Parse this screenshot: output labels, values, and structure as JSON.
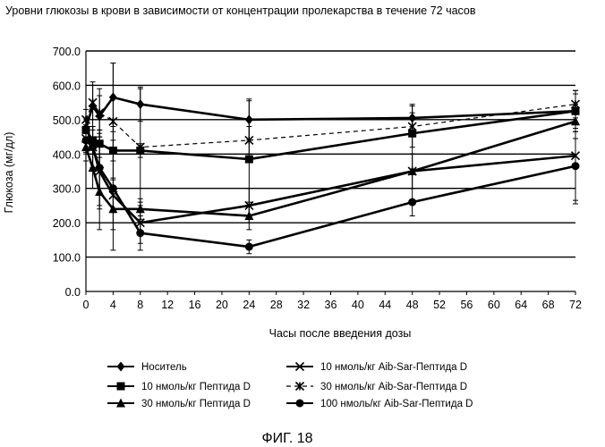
{
  "figure_label": "ФИГ. 18",
  "chart_data": {
    "type": "line",
    "title": "Уровни глюкозы в крови в зависимости от концентрации пролекарства в течение 72 часов",
    "xlabel": "Часы после введения дозы",
    "ylabel": "Глюкоза (мг/дл)",
    "xlim": [
      0,
      72
    ],
    "ylim": [
      0,
      700
    ],
    "xticks": [
      "0",
      "4",
      "8",
      "12",
      "16",
      "20",
      "24",
      "28",
      "32",
      "36",
      "40",
      "44",
      "48",
      "52",
      "56",
      "60",
      "64",
      "68",
      "72"
    ],
    "yticks": [
      "0.0",
      "100.0",
      "200.0",
      "300.0",
      "400.0",
      "500.0",
      "600.0",
      "700.0"
    ],
    "grid": "horizontal",
    "legend_position": "bottom",
    "series": [
      {
        "name": "Носитель",
        "marker": "diamond",
        "dash": "solid",
        "x": [
          0,
          1,
          2,
          4,
          8,
          24,
          48,
          72
        ],
        "y": [
          475,
          540,
          510,
          565,
          545,
          500,
          505,
          525
        ],
        "err": [
          30,
          70,
          60,
          100,
          50,
          60,
          40,
          50
        ]
      },
      {
        "name": "10 нмоль/кг Пептида D",
        "marker": "square",
        "dash": "solid",
        "x": [
          0,
          1,
          2,
          4,
          8,
          24,
          48,
          72
        ],
        "y": [
          470,
          440,
          430,
          410,
          410,
          385,
          460,
          525
        ],
        "err": [
          30,
          40,
          40,
          30,
          20,
          170,
          60,
          60
        ]
      },
      {
        "name": "30 нмоль/кг Пептида D",
        "marker": "triangle",
        "dash": "solid",
        "x": [
          0,
          1,
          2,
          4,
          8,
          24,
          48,
          72
        ],
        "y": [
          420,
          360,
          290,
          240,
          240,
          220,
          350,
          495
        ],
        "err": [
          40,
          60,
          110,
          60,
          30,
          40,
          50,
          50
        ]
      },
      {
        "name": "10 нмоль/кг Aib-Sar-Пептида D",
        "marker": "cross",
        "dash": "solid",
        "x": [
          0,
          1,
          2,
          4,
          8,
          24,
          48,
          72
        ],
        "y": [
          445,
          420,
          350,
          280,
          200,
          250,
          350,
          395
        ],
        "err": [
          40,
          60,
          110,
          50,
          60,
          50,
          50,
          140
        ]
      },
      {
        "name": "30 нмоль/кг Aib-Sar-Пептида D",
        "marker": "asterisk",
        "dash": "dashed",
        "x": [
          0,
          1,
          2,
          4,
          8,
          24,
          48,
          72
        ],
        "y": [
          500,
          550,
          520,
          495,
          420,
          440,
          480,
          545
        ],
        "err": [
          30,
          50,
          70,
          170,
          170,
          40,
          60,
          40
        ]
      },
      {
        "name": "100 нмоль/кг Aib-Sar-Пептида D",
        "marker": "circle",
        "dash": "solid",
        "x": [
          0,
          1,
          2,
          4,
          8,
          24,
          48,
          72
        ],
        "y": [
          440,
          420,
          360,
          300,
          170,
          130,
          260,
          365
        ],
        "err": [
          40,
          60,
          110,
          180,
          50,
          20,
          40,
          100
        ]
      }
    ]
  }
}
